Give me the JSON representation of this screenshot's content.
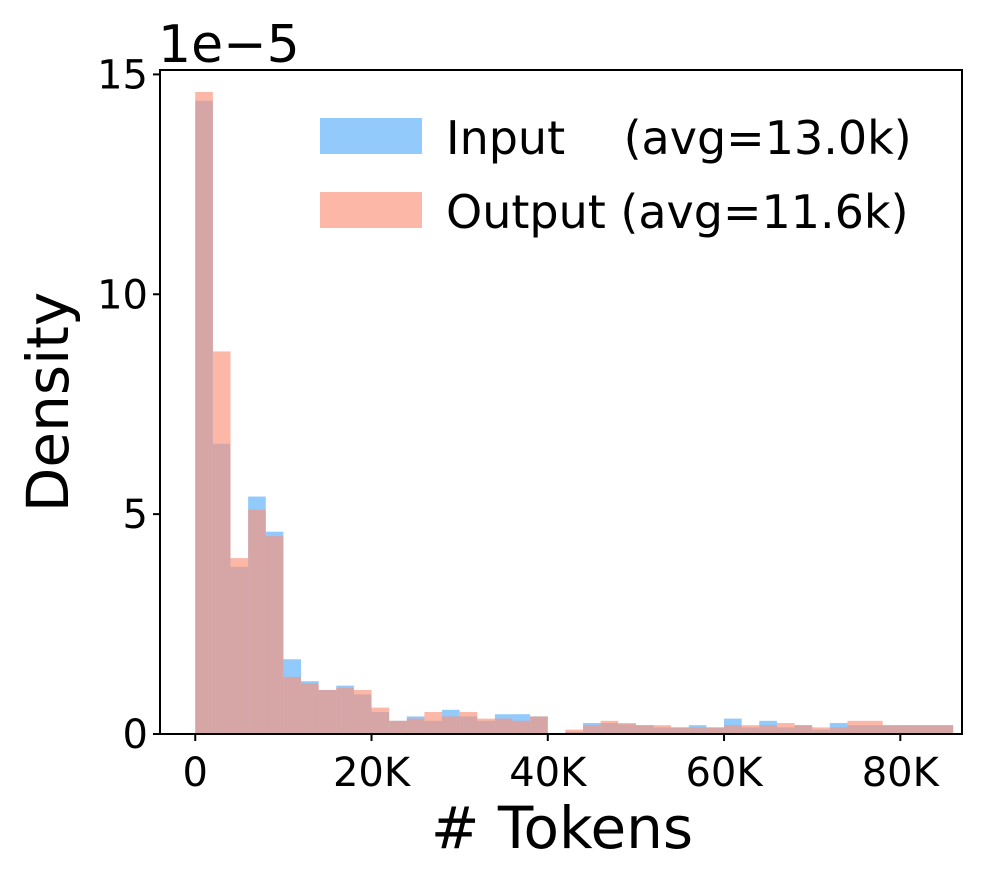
{
  "chart_data": {
    "type": "bar",
    "title": "",
    "scale_label": "1e−5",
    "xlabel": "# Tokens",
    "ylabel": "Density",
    "xlim": [
      -4000,
      87000
    ],
    "ylim": [
      0,
      15.1
    ],
    "x_ticks": [
      {
        "value": 0,
        "label": "0"
      },
      {
        "value": 20000,
        "label": "20K"
      },
      {
        "value": 40000,
        "label": "40K"
      },
      {
        "value": 60000,
        "label": "60K"
      },
      {
        "value": 80000,
        "label": "80K"
      }
    ],
    "y_ticks": [
      {
        "value": 0,
        "label": "0"
      },
      {
        "value": 5,
        "label": "5"
      },
      {
        "value": 10,
        "label": "10"
      },
      {
        "value": 15,
        "label": "15"
      }
    ],
    "bin_start": 0,
    "bin_width": 2000,
    "series": [
      {
        "name": "Input    (avg=13.0k)",
        "color": "#64b4fa",
        "values": [
          14.4,
          6.6,
          3.8,
          5.4,
          4.6,
          1.7,
          1.2,
          1.0,
          1.1,
          0.9,
          0.5,
          0.3,
          0.4,
          0.3,
          0.55,
          0.4,
          0.3,
          0.45,
          0.45,
          0.4,
          0.0,
          0.05,
          0.25,
          0.25,
          0.22,
          0.2,
          0.15,
          0.15,
          0.2,
          0.15,
          0.35,
          0.15,
          0.3,
          0.15,
          0.2,
          0.1,
          0.25,
          0.2,
          0.2,
          0.2,
          0.2,
          0.2,
          0.2
        ]
      },
      {
        "name": "Output (avg=11.6k)",
        "color": "#fa9178",
        "values": [
          14.6,
          8.7,
          4.0,
          5.1,
          4.5,
          1.3,
          1.15,
          1.0,
          1.05,
          1.0,
          0.6,
          0.3,
          0.35,
          0.5,
          0.4,
          0.5,
          0.35,
          0.35,
          0.3,
          0.4,
          0.0,
          0.1,
          0.2,
          0.3,
          0.25,
          0.2,
          0.2,
          0.15,
          0.15,
          0.15,
          0.2,
          0.2,
          0.2,
          0.25,
          0.2,
          0.15,
          0.15,
          0.3,
          0.3,
          0.2,
          0.2,
          0.2,
          0.2
        ]
      }
    ],
    "legend_position": "upper-right",
    "grid": false
  }
}
